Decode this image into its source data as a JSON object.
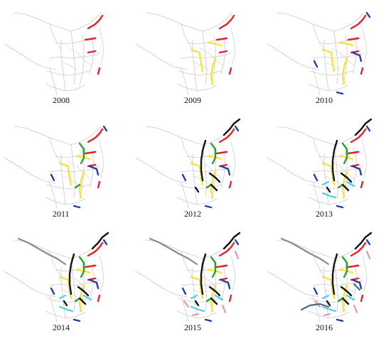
{
  "colors": {
    "base": "#c9c9c9",
    "red": "#e8202a",
    "yellow": "#f5e33a",
    "blue": "#1f3fa8",
    "green": "#2aa02a",
    "black": "#141414",
    "cyan": "#49d3e8",
    "pink": "#f08aa8",
    "gray": "#8a8a8a",
    "slate": "#4a6b7a"
  },
  "panels": [
    {
      "year": "2008",
      "layers": [
        "red"
      ]
    },
    {
      "year": "2009",
      "layers": [
        "red",
        "yellow"
      ]
    },
    {
      "year": "2010",
      "layers": [
        "red",
        "yellow",
        "blue"
      ]
    },
    {
      "year": "2011",
      "layers": [
        "red",
        "yellow",
        "blue",
        "green"
      ]
    },
    {
      "year": "2012",
      "layers": [
        "red",
        "yellow",
        "blue",
        "green",
        "black"
      ]
    },
    {
      "year": "2013",
      "layers": [
        "red",
        "yellow",
        "blue",
        "green",
        "black",
        "cyan"
      ]
    },
    {
      "year": "2014",
      "layers": [
        "red",
        "yellow",
        "blue",
        "green",
        "black",
        "cyan",
        "gray"
      ]
    },
    {
      "year": "2015",
      "layers": [
        "red",
        "yellow",
        "blue",
        "green",
        "black",
        "cyan",
        "gray",
        "pink"
      ]
    },
    {
      "year": "2016",
      "layers": [
        "red",
        "yellow",
        "blue",
        "green",
        "black",
        "cyan",
        "gray",
        "pink",
        "slate"
      ]
    }
  ]
}
